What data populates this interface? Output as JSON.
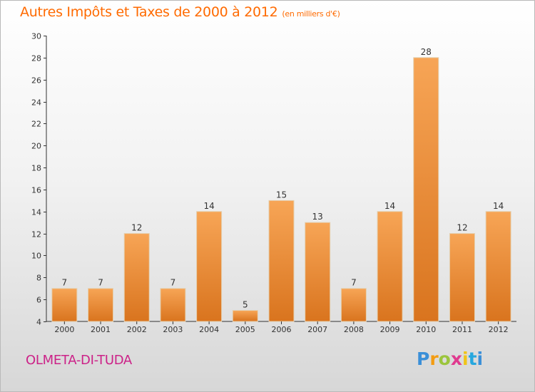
{
  "header": {
    "title": "Autres Impôts et Taxes de 2000 à 2012",
    "unit": "(en milliers d'€)"
  },
  "footer": {
    "city": "OLMETA-DI-TUDA",
    "logo": "Proxiti"
  },
  "colors": {
    "bar_light": "#f7a556",
    "bar_dark": "#d9741e",
    "title": "#ff6a00",
    "city": "#cc2288"
  },
  "chart_data": {
    "type": "bar",
    "title": "Autres Impôts et Taxes de 2000 à 2012",
    "subtitle": "(en milliers d'€)",
    "categories": [
      "2000",
      "2001",
      "2002",
      "2003",
      "2004",
      "2005",
      "2006",
      "2007",
      "2008",
      "2009",
      "2010",
      "2011",
      "2012"
    ],
    "values": [
      7,
      7,
      12,
      7,
      14,
      5,
      15,
      13,
      7,
      14,
      28,
      12,
      14
    ],
    "ylim": [
      4,
      30
    ],
    "yticks": [
      4,
      6,
      8,
      10,
      12,
      14,
      16,
      18,
      20,
      22,
      24,
      26,
      28,
      30
    ],
    "grid": false,
    "legend": "none"
  }
}
